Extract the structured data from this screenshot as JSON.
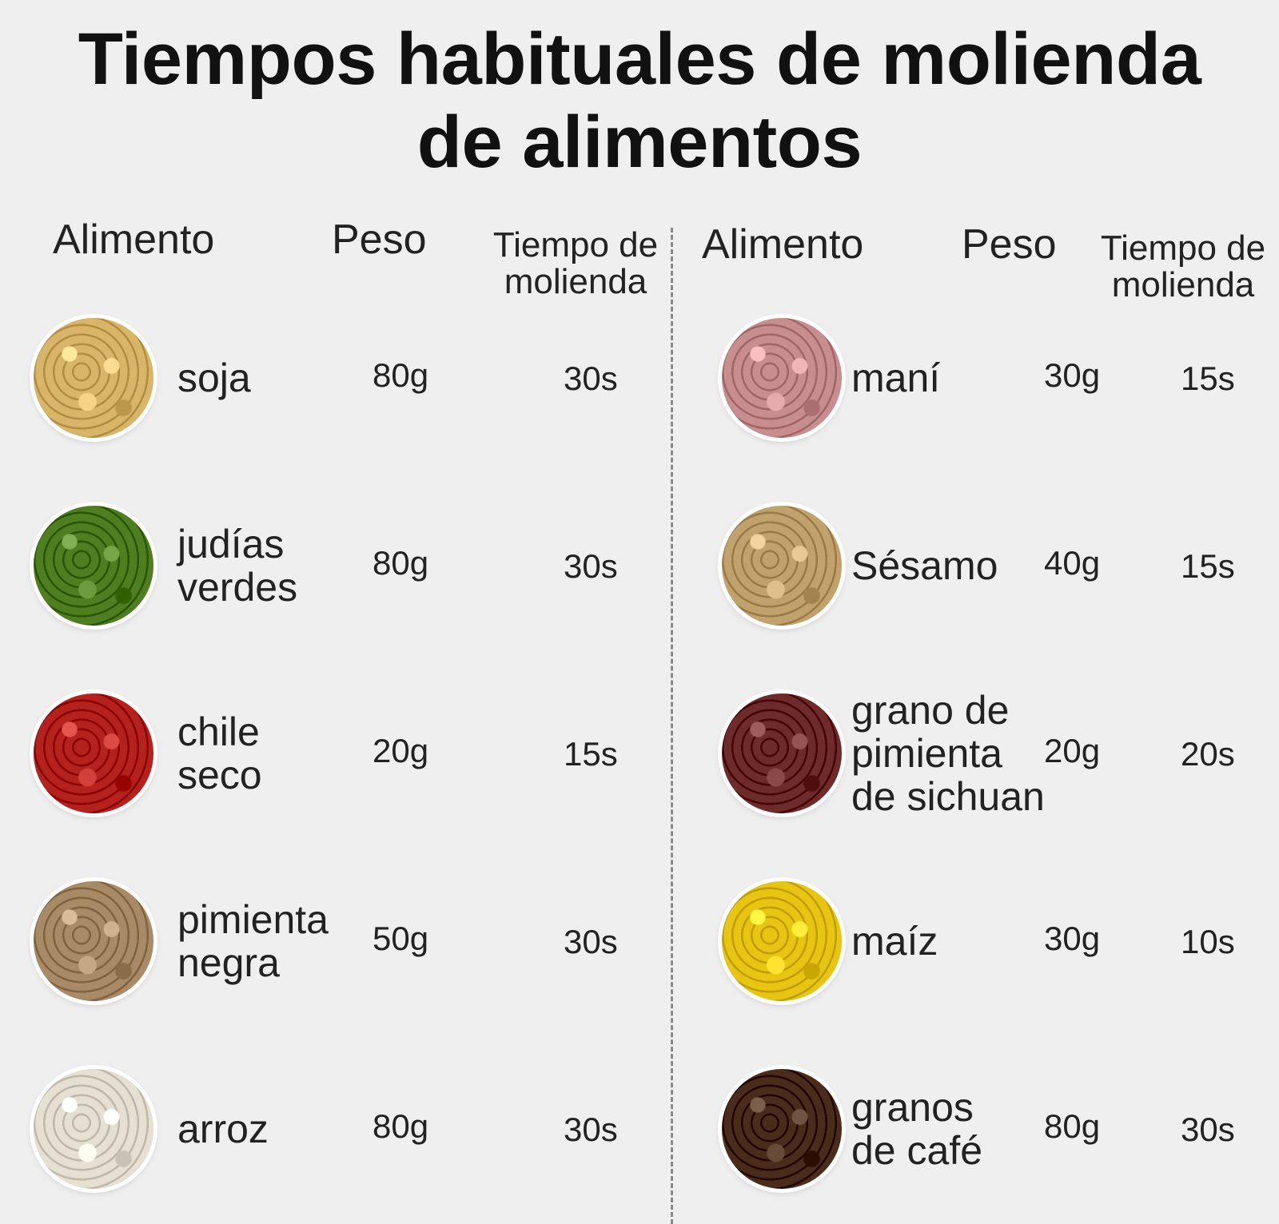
{
  "title": {
    "line1": "Tiempos habituales de molienda",
    "line2": "de alimentos"
  },
  "headers": {
    "left": {
      "food": "Alimento",
      "weight": "Peso",
      "time": "Tiempo de\nmolienda"
    },
    "right": {
      "food": "Alimento",
      "weight": "Peso",
      "time": "Tiempo de\nmolienda"
    }
  },
  "left": [
    {
      "name": "soja",
      "weight": "80g",
      "time": "30s",
      "icon": "soybean-icon",
      "color": "#d9b56a"
    },
    {
      "name": "judías\nverdes",
      "weight": "80g",
      "time": "30s",
      "icon": "mung-bean-icon",
      "color": "#4e7e1f"
    },
    {
      "name": "chile\nseco",
      "weight": "20g",
      "time": "15s",
      "icon": "dried-chili-icon",
      "color": "#b3221c"
    },
    {
      "name": "pimienta\nnegra",
      "weight": "50g",
      "time": "30s",
      "icon": "black-pepper-icon",
      "color": "#a98a66"
    },
    {
      "name": "arroz",
      "weight": "80g",
      "time": "30s",
      "icon": "rice-icon",
      "color": "#e6e0d3"
    }
  ],
  "right": [
    {
      "name": "maní",
      "weight": "30g",
      "time": "15s",
      "icon": "peanut-icon",
      "color": "#c88e8f"
    },
    {
      "name": "Sésamo",
      "weight": "40g",
      "time": "15s",
      "icon": "sesame-icon",
      "color": "#c1a26c"
    },
    {
      "name": "grano de\npimienta\nde sichuan",
      "weight": "20g",
      "time": "20s",
      "icon": "sichuan-pepper-icon",
      "color": "#6e2b2b"
    },
    {
      "name": "maíz",
      "weight": "30g",
      "time": "10s",
      "icon": "corn-icon",
      "color": "#e8c512"
    },
    {
      "name": "granos\nde café",
      "weight": "80g",
      "time": "30s",
      "icon": "coffee-bean-icon",
      "color": "#4a2c1a"
    }
  ]
}
